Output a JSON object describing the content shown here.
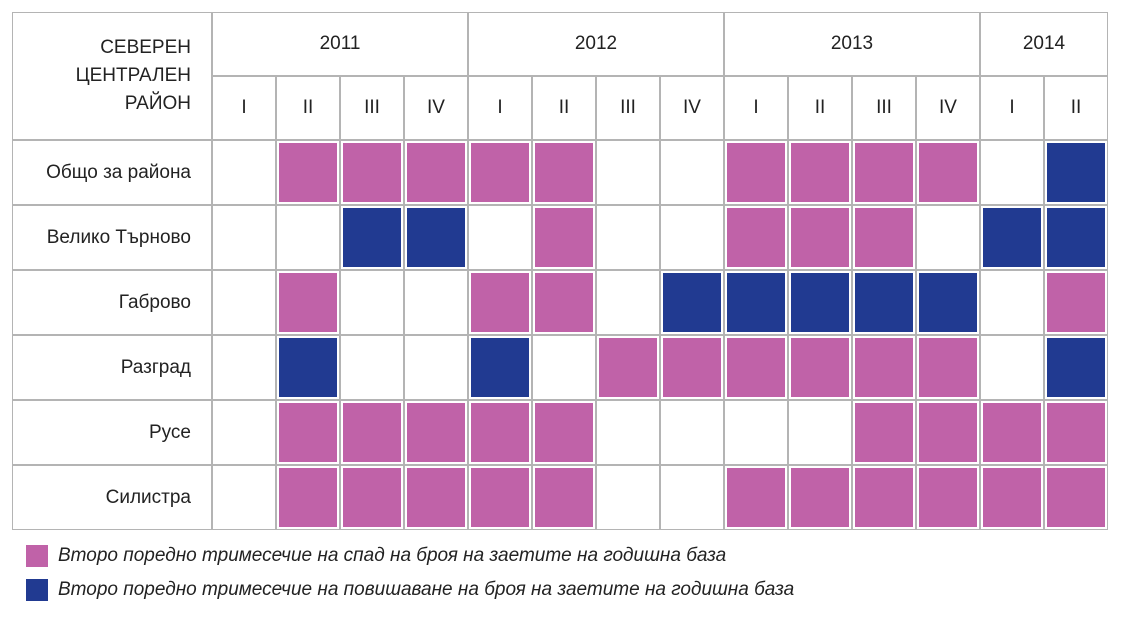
{
  "table": {
    "corner": [
      "СЕВЕРЕН",
      "ЦЕНТРАЛЕН",
      "РАЙОН"
    ],
    "years": [
      {
        "year": "2011",
        "quarters": [
          "I",
          "II",
          "III",
          "IV"
        ]
      },
      {
        "year": "2012",
        "quarters": [
          "I",
          "II",
          "III",
          "IV"
        ]
      },
      {
        "year": "2013",
        "quarters": [
          "I",
          "II",
          "III",
          "IV"
        ]
      },
      {
        "year": "2014",
        "quarters": [
          "I",
          "II"
        ]
      }
    ],
    "rows": [
      {
        "label": "Общо за района",
        "cells": [
          null,
          0,
          0,
          0,
          0,
          0,
          null,
          null,
          0,
          0,
          0,
          0,
          null,
          1
        ]
      },
      {
        "label": "Велико Търново",
        "cells": [
          null,
          null,
          1,
          1,
          null,
          0,
          null,
          null,
          0,
          0,
          0,
          null,
          1,
          1
        ]
      },
      {
        "label": "Габрово",
        "cells": [
          null,
          0,
          null,
          null,
          0,
          0,
          null,
          1,
          1,
          1,
          1,
          1,
          null,
          0
        ]
      },
      {
        "label": "Разград",
        "cells": [
          null,
          1,
          null,
          null,
          1,
          null,
          0,
          0,
          0,
          0,
          0,
          0,
          null,
          1
        ]
      },
      {
        "label": "Русе",
        "cells": [
          null,
          0,
          0,
          0,
          0,
          0,
          null,
          null,
          null,
          null,
          0,
          0,
          0,
          0
        ]
      },
      {
        "label": "Силистра",
        "cells": [
          null,
          0,
          0,
          0,
          0,
          0,
          null,
          null,
          0,
          0,
          0,
          0,
          0,
          0
        ]
      }
    ]
  },
  "legend": [
    {
      "label": "Второ поредно тримесечие на спад на броя на заетите на годишна база",
      "color": "#c062a8"
    },
    {
      "label": "Второ поредно тримесечие на повишаване на броя на заетите на годишна база",
      "color": "#213a91"
    }
  ]
}
